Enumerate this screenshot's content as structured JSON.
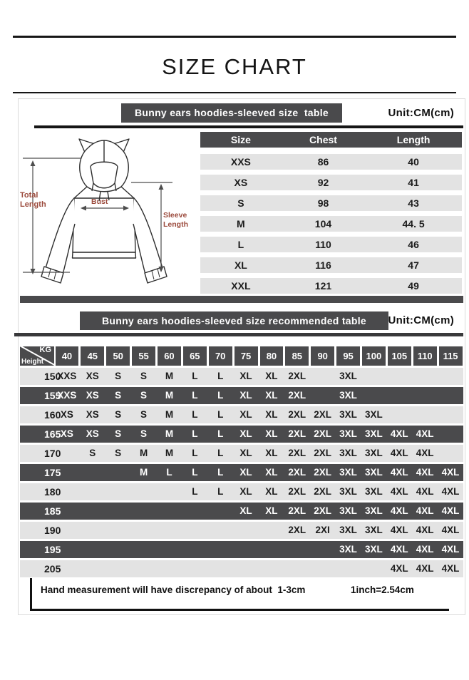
{
  "page": {
    "title": "SIZE CHART"
  },
  "size_table": {
    "title": "Bunny ears hoodies-sleeved size  table",
    "unit": "Unit:CM(cm)",
    "columns": [
      "Size",
      "Chest",
      "Length"
    ],
    "rows": [
      [
        "XXS",
        "86",
        "40"
      ],
      [
        "XS",
        "92",
        "41"
      ],
      [
        "S",
        "98",
        "43"
      ],
      [
        "M",
        "104",
        "44. 5"
      ],
      [
        "L",
        "110",
        "46"
      ],
      [
        "XL",
        "116",
        "47"
      ],
      [
        "XXL",
        "121",
        "49"
      ]
    ]
  },
  "diagram": {
    "total_length": "Total Length",
    "bust": "Bust",
    "sleeve_length": "Sleeve Length",
    "label_color": "#9b4a3c"
  },
  "recommended_table": {
    "title": "Bunny ears hoodies-sleeved size recommended table",
    "unit": "Unit:CM(cm)",
    "corner_top": "KG",
    "corner_bottom": "Height",
    "weights": [
      "40",
      "45",
      "50",
      "55",
      "60",
      "65",
      "70",
      "75",
      "80",
      "85",
      "90",
      "95",
      "100",
      "105",
      "110",
      "115"
    ],
    "rows": [
      {
        "height": "150",
        "cells": [
          "XXS",
          "XS",
          "S",
          "S",
          "M",
          "L",
          "L",
          "XL",
          "XL",
          "2XL",
          "",
          "3XL",
          "",
          "",
          "",
          ""
        ]
      },
      {
        "height": "155",
        "cells": [
          "XXS",
          "XS",
          "S",
          "S",
          "M",
          "L",
          "L",
          "XL",
          "XL",
          "2XL",
          "",
          "3XL",
          "",
          "",
          "",
          ""
        ]
      },
      {
        "height": "160",
        "cells": [
          "XS",
          "XS",
          "S",
          "S",
          "M",
          "L",
          "L",
          "XL",
          "XL",
          "2XL",
          "2XL",
          "3XL",
          "3XL",
          "",
          "",
          ""
        ]
      },
      {
        "height": "165",
        "cells": [
          "XS",
          "XS",
          "S",
          "S",
          "M",
          "L",
          "L",
          "XL",
          "XL",
          "2XL",
          "2XL",
          "3XL",
          "3XL",
          "4XL",
          "4XL",
          ""
        ]
      },
      {
        "height": "170",
        "cells": [
          "",
          "S",
          "S",
          "M",
          "M",
          "L",
          "L",
          "XL",
          "XL",
          "2XL",
          "2XL",
          "3XL",
          "3XL",
          "4XL",
          "4XL",
          ""
        ]
      },
      {
        "height": "175",
        "cells": [
          "",
          "",
          "",
          "M",
          "L",
          "L",
          "L",
          "XL",
          "XL",
          "2XL",
          "2XL",
          "3XL",
          "3XL",
          "4XL",
          "4XL",
          "4XL"
        ]
      },
      {
        "height": "180",
        "cells": [
          "",
          "",
          "",
          "",
          "",
          "L",
          "L",
          "XL",
          "XL",
          "2XL",
          "2XL",
          "3XL",
          "3XL",
          "4XL",
          "4XL",
          "4XL"
        ]
      },
      {
        "height": "185",
        "cells": [
          "",
          "",
          "",
          "",
          "",
          "",
          "",
          "XL",
          "XL",
          "2XL",
          "2XL",
          "3XL",
          "3XL",
          "4XL",
          "4XL",
          "4XL"
        ]
      },
      {
        "height": "190",
        "cells": [
          "",
          "",
          "",
          "",
          "",
          "",
          "",
          "",
          "",
          "2XL",
          "2XI",
          "3XL",
          "3XL",
          "4XL",
          "4XL",
          "4XL"
        ]
      },
      {
        "height": "195",
        "cells": [
          "",
          "",
          "",
          "",
          "",
          "",
          "",
          "",
          "",
          "",
          "",
          "3XL",
          "3XL",
          "4XL",
          "4XL",
          "4XL"
        ]
      },
      {
        "height": "205",
        "cells": [
          "",
          "",
          "",
          "",
          "",
          "",
          "",
          "",
          "",
          "",
          "",
          "",
          "",
          "4XL",
          "4XL",
          "4XL"
        ]
      }
    ]
  },
  "footer": {
    "note": "Hand measurement will have discrepancy of about  1-3cm",
    "conversion": "1inch=2.54cm"
  },
  "colors": {
    "bar_dark": "#4a4a4c",
    "row_light": "#e3e3e3",
    "rule_black": "#161616",
    "label_red": "#9b4a3c"
  }
}
